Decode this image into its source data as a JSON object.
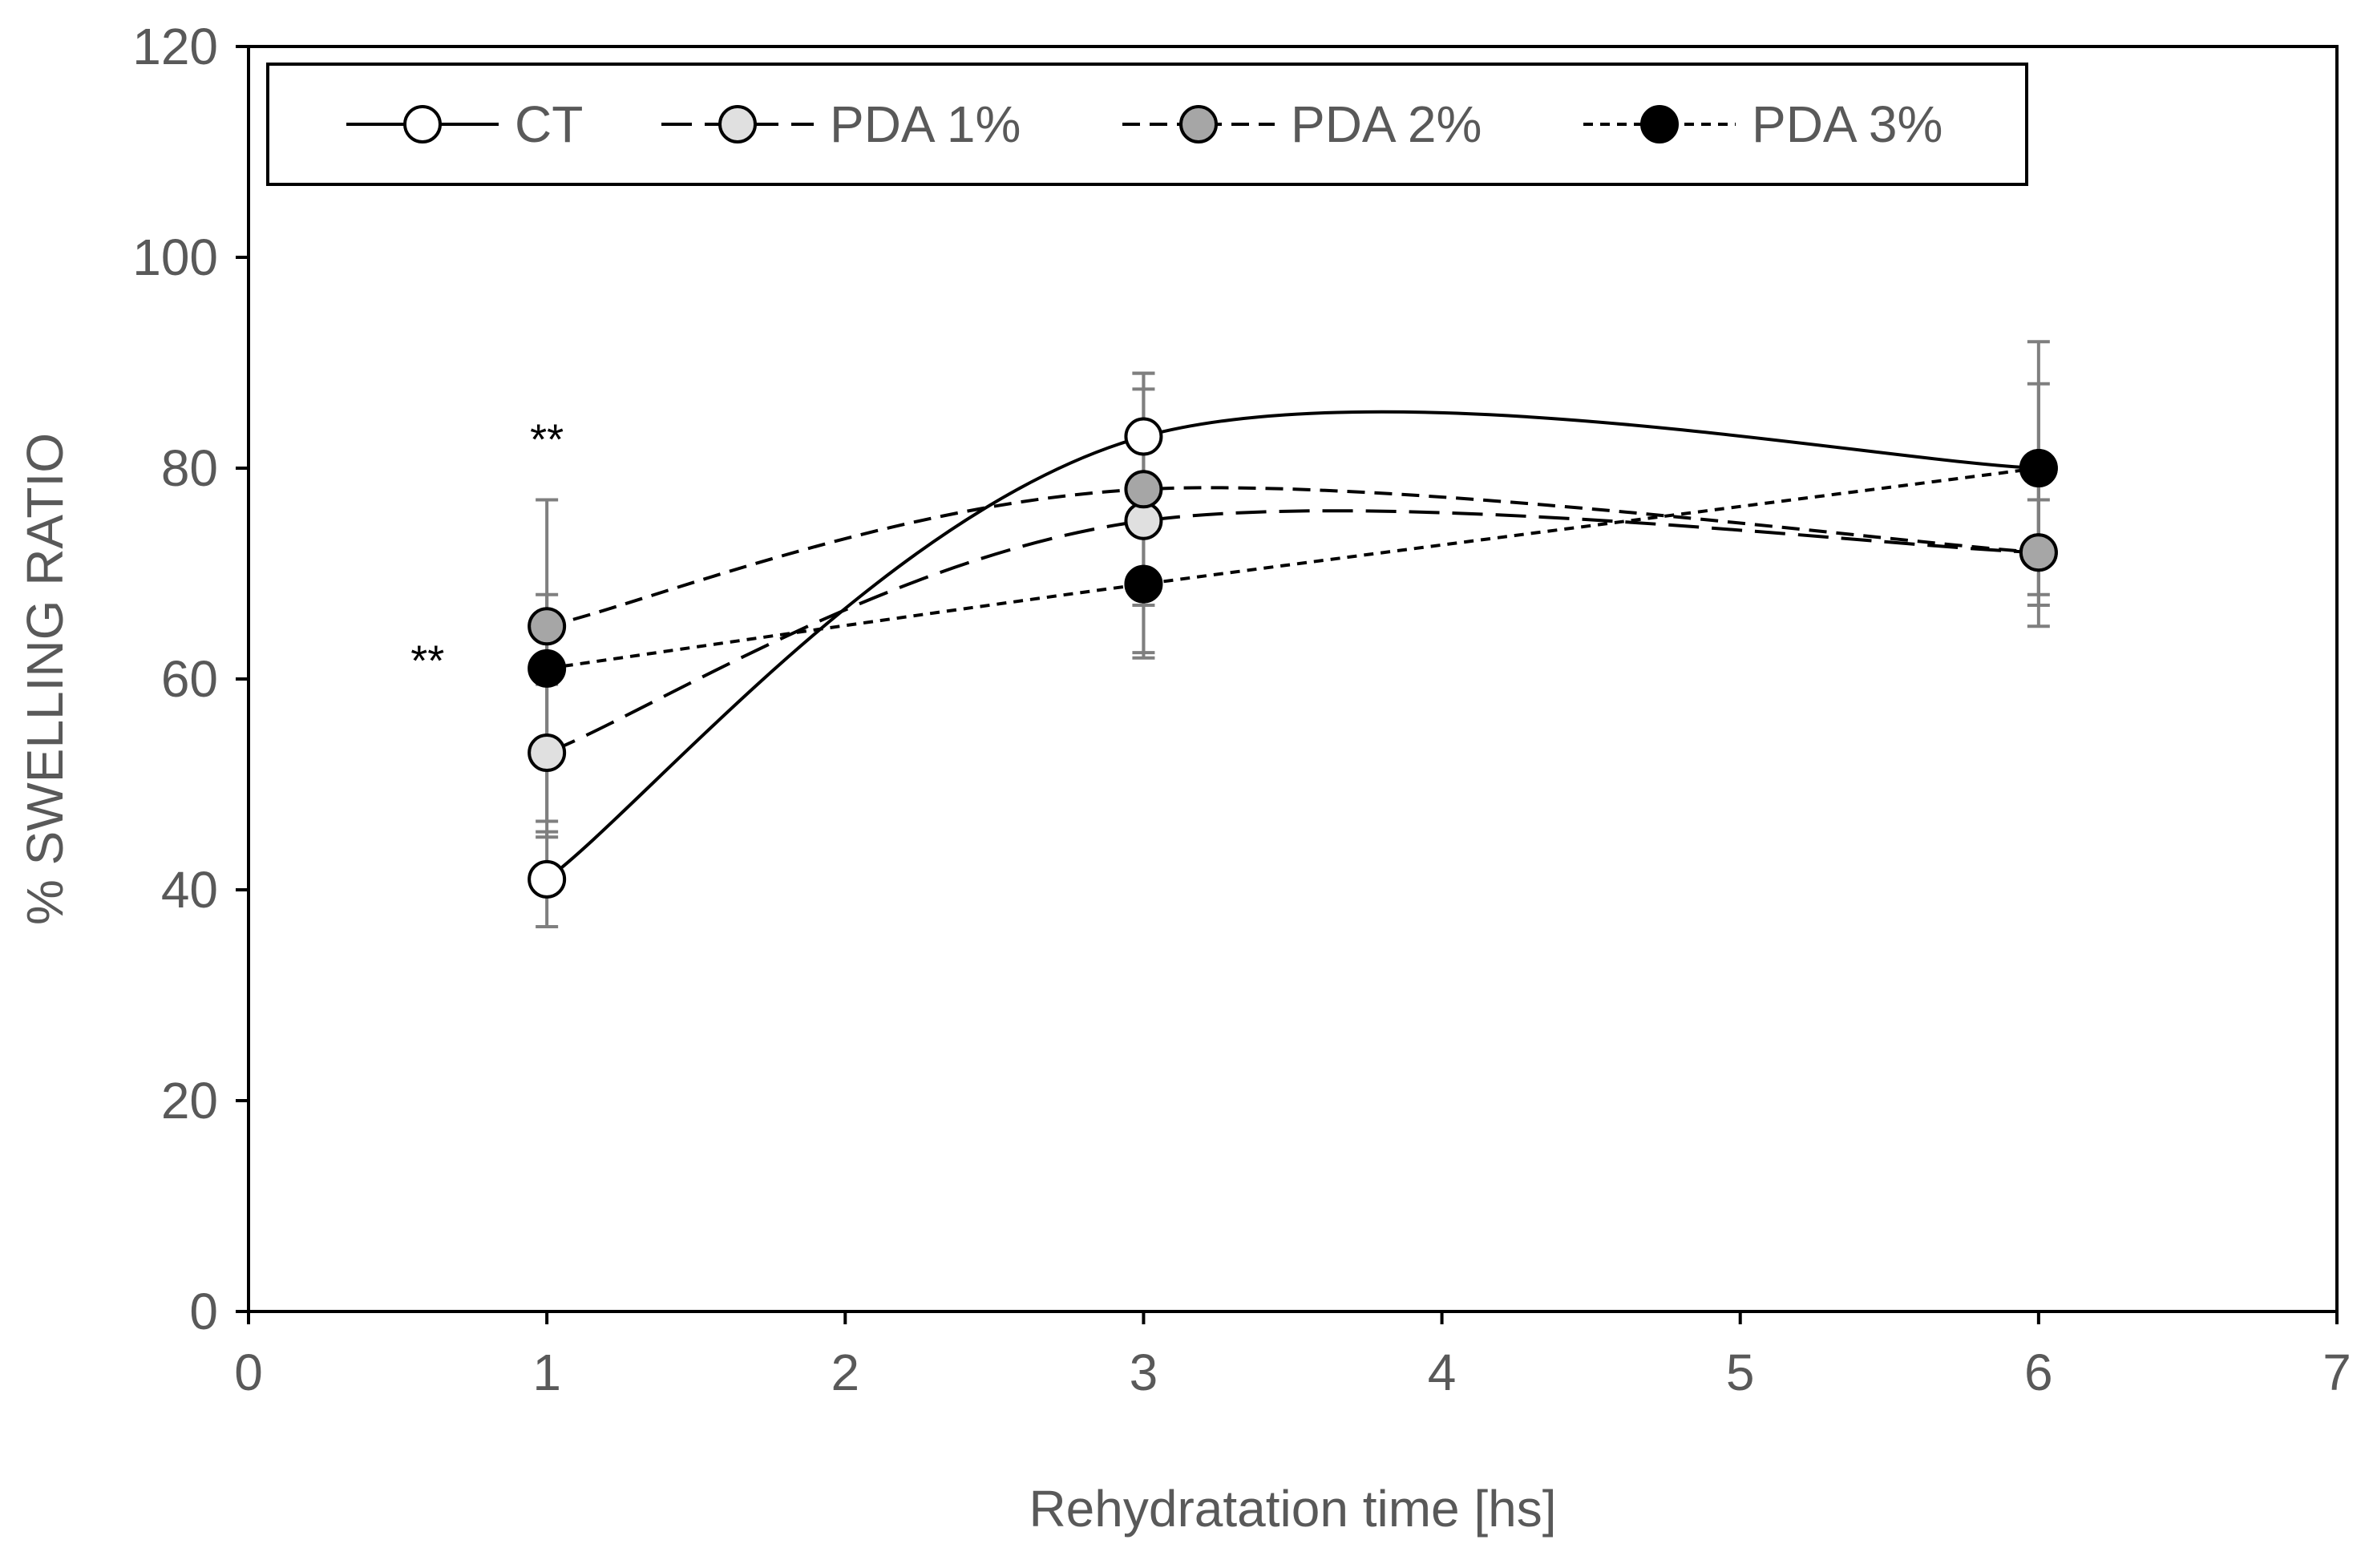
{
  "chart_data": {
    "type": "line",
    "xlabel": "Rehydratation time [hs]",
    "ylabel": "% SWELLING RATIO",
    "xlim": [
      0,
      7
    ],
    "ylim": [
      0,
      120
    ],
    "x_ticks": [
      0,
      1,
      2,
      3,
      4,
      5,
      6,
      7
    ],
    "y_ticks": [
      0,
      20,
      40,
      60,
      80,
      100,
      120
    ],
    "grid": false,
    "legend_position": "top",
    "smoothed": true,
    "x": [
      1,
      3,
      6
    ],
    "series": [
      {
        "name": "CT",
        "values": [
          41,
          83,
          80
        ],
        "error": [
          4.5,
          6,
          8
        ],
        "marker_fill": "#ffffff",
        "line_style": "solid"
      },
      {
        "name": "PDA 1%",
        "values": [
          53,
          75,
          72
        ],
        "error": [
          6.5,
          12.5,
          5
        ],
        "marker_fill": "#e0e0e0",
        "line_style": "long-dash"
      },
      {
        "name": "PDA 2%",
        "values": [
          65,
          78,
          72
        ],
        "error": [
          3,
          11,
          7
        ],
        "marker_fill": "#a6a6a6",
        "line_style": "dash"
      },
      {
        "name": "PDA 3%",
        "values": [
          61,
          69,
          80
        ],
        "error": [
          16,
          7,
          12
        ],
        "marker_fill": "#000000",
        "line_style": "dot"
      }
    ],
    "annotations": [
      {
        "text": "**",
        "x": 1,
        "y": 83
      },
      {
        "text": "**",
        "x": 0.6,
        "y": 62
      }
    ],
    "colors": {
      "axis": "#000000",
      "error_bar": "#7f7f7f",
      "text": "#595959"
    }
  }
}
